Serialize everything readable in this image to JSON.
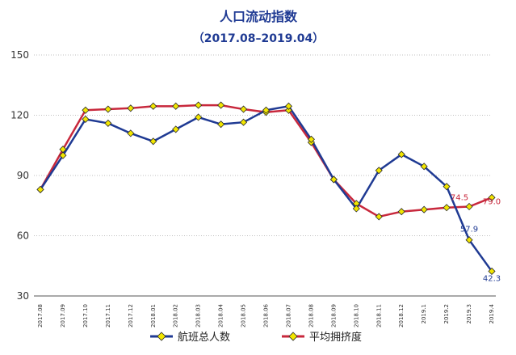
{
  "chart_data": {
    "type": "line",
    "title": "人口流动指数",
    "subtitle": "（2017.08–2019.04）",
    "categories": [
      "2017.08",
      "2017.09",
      "2017.10",
      "2017.11",
      "2017.12",
      "2018.01",
      "2018.02",
      "2018.03",
      "2018.04",
      "2018.05",
      "2018.06",
      "2018.07",
      "2018.08",
      "2018.09",
      "2018.10",
      "2018.11",
      "2018.12",
      "2019.1",
      "2019.2",
      "2019.3",
      "2019.4"
    ],
    "ylim": [
      30,
      150
    ],
    "yticks": [
      30,
      60,
      90,
      120,
      150
    ],
    "grid": true,
    "legend_position": "bottom",
    "series": [
      {
        "name": "航班总人数",
        "color": "#1f3a93",
        "marker": "diamond",
        "values": [
          83,
          100,
          118,
          116,
          111,
          107,
          113,
          119,
          115.5,
          116.5,
          122.5,
          124.5,
          108,
          88,
          73.5,
          92.5,
          100.5,
          94.5,
          84.5,
          57.9,
          42.3
        ]
      },
      {
        "name": "平均拥挤度",
        "color": "#c8283c",
        "marker": "diamond",
        "values": [
          83,
          103,
          122.5,
          123,
          123.5,
          124.5,
          124.5,
          125,
          125,
          123,
          121.5,
          122.5,
          106.5,
          88,
          76,
          69.5,
          72,
          73,
          74,
          74.5,
          79.0
        ]
      }
    ],
    "data_labels": [
      {
        "series": 0,
        "index": 19,
        "text": "57.9"
      },
      {
        "series": 0,
        "index": 20,
        "text": "42.3"
      },
      {
        "series": 1,
        "index": 19,
        "text": "74.5"
      },
      {
        "series": 1,
        "index": 20,
        "text": "79.0"
      }
    ],
    "colors": {
      "title": "#1f3a93",
      "axis_text": "#333333",
      "grid": "#bfbfbf",
      "marker_fill": "#f2e600",
      "marker_stroke": "#2b2b2b"
    }
  }
}
